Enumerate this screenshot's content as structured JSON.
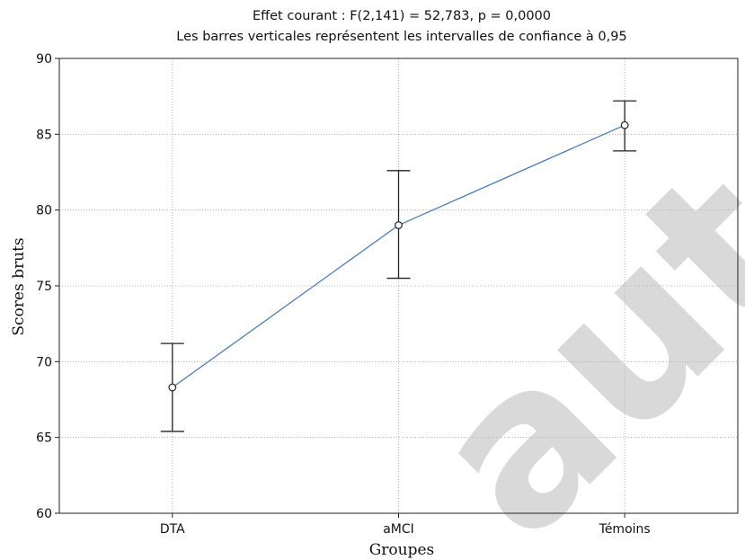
{
  "chart_data": {
    "type": "line",
    "title": "Effet courant : F(2,141) = 52,783, p = 0,0000",
    "subtitle": "Les barres verticales représentent les intervalles de confiance à 0,95",
    "xlabel": "Groupes",
    "ylabel": "Scores bruts",
    "categories": [
      "DTA",
      "aMCI",
      "Témoins"
    ],
    "series": [
      {
        "values": [
          68.3,
          79.0,
          85.6
        ],
        "ci_lower": [
          65.4,
          75.5,
          83.9
        ],
        "ci_upper": [
          71.2,
          82.6,
          87.2
        ],
        "color": "#4a7ebb"
      }
    ],
    "ylim": [
      60,
      90
    ],
    "yticks": [
      "60",
      "65",
      "70",
      "75",
      "80",
      "85",
      "90"
    ],
    "grid": true,
    "watermark_text": "auto",
    "colors": {
      "line": "#4a7ebb",
      "errorbar": "#222222",
      "grid": "#b0b0b0",
      "watermark": "#d9d9d9"
    }
  }
}
